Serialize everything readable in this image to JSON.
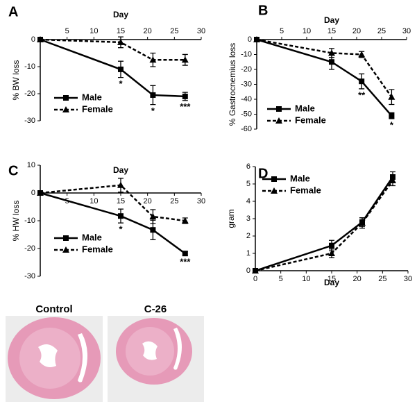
{
  "chart_data": [
    {
      "type": "line",
      "panel": "A",
      "x_label": "Day",
      "y_label": "% BW loss",
      "x": [
        0,
        15,
        21,
        27
      ],
      "xlim": [
        0,
        30
      ],
      "xticks": [
        5,
        10,
        15,
        20,
        25,
        30
      ],
      "ylim": [
        -30,
        0
      ],
      "yticks": [
        0,
        -10,
        -20,
        -30
      ],
      "series": [
        {
          "name": "Male",
          "color": "#000000",
          "marker": "square",
          "dashed": false,
          "values": [
            0,
            -11,
            -20.5,
            -21
          ],
          "errors": [
            0,
            3,
            3.5,
            1.5
          ]
        },
        {
          "name": "Female",
          "color": "#000000",
          "marker": "triangle",
          "dashed": true,
          "values": [
            0,
            -1,
            -7.5,
            -7.5
          ],
          "errors": [
            0,
            2,
            2.5,
            2
          ]
        }
      ],
      "annotations": [
        {
          "x": 15,
          "text": "*"
        },
        {
          "x": 21,
          "text": "*"
        },
        {
          "x": 27,
          "text": "***"
        }
      ]
    },
    {
      "type": "line",
      "panel": "B",
      "x_label": "Day",
      "y_label": "% Gastrocnemius loss",
      "x": [
        0,
        15,
        21,
        27
      ],
      "xlim": [
        0,
        30
      ],
      "xticks": [
        5,
        10,
        15,
        20,
        25,
        30
      ],
      "ylim": [
        -60,
        0
      ],
      "yticks": [
        0,
        -10,
        -20,
        -30,
        -40,
        -50,
        -60
      ],
      "series": [
        {
          "name": "Male",
          "color": "#000000",
          "marker": "square",
          "dashed": false,
          "values": [
            0,
            -15,
            -28,
            -51
          ],
          "errors": [
            0,
            5,
            5,
            2
          ]
        },
        {
          "name": "Female",
          "color": "#000000",
          "marker": "triangle",
          "dashed": true,
          "values": [
            0,
            -9,
            -10,
            -38.5
          ],
          "errors": [
            0,
            3,
            2,
            5
          ]
        }
      ],
      "annotations": [
        {
          "x": 21,
          "text": "**"
        },
        {
          "x": 27,
          "text": "*"
        }
      ]
    },
    {
      "type": "line",
      "panel": "C",
      "x_label": "Day",
      "y_label": "% HW loss",
      "x": [
        0,
        15,
        21,
        27
      ],
      "xlim": [
        0,
        30
      ],
      "xticks": [
        5,
        10,
        15,
        20,
        25,
        30
      ],
      "ylim": [
        -30,
        10
      ],
      "yticks": [
        10,
        0,
        -10,
        -20,
        -30
      ],
      "series": [
        {
          "name": "Male",
          "color": "#000000",
          "marker": "square",
          "dashed": false,
          "values": [
            0,
            -8.3,
            -13.3,
            -21.8
          ],
          "errors": [
            0,
            2.5,
            3.5,
            0.7
          ]
        },
        {
          "name": "Female",
          "color": "#000000",
          "marker": "triangle",
          "dashed": true,
          "values": [
            0,
            2.8,
            -8.5,
            -10
          ],
          "errors": [
            0,
            2.5,
            2.5,
            1
          ]
        }
      ],
      "annotations": [
        {
          "x": 15,
          "text": "*"
        },
        {
          "x": 27,
          "text": "***"
        }
      ]
    },
    {
      "type": "line",
      "panel": "D",
      "x_label": "Day",
      "y_label": "gram",
      "x": [
        0,
        15,
        21,
        27
      ],
      "xlim": [
        0,
        30
      ],
      "xticks": [
        0,
        5,
        10,
        15,
        20,
        25,
        30
      ],
      "ylim": [
        0,
        6
      ],
      "yticks": [
        0,
        1,
        2,
        3,
        4,
        5,
        6
      ],
      "series": [
        {
          "name": "Male",
          "color": "#000000",
          "marker": "square",
          "dashed": false,
          "values": [
            0,
            1.45,
            2.8,
            5.4
          ],
          "errors": [
            0,
            0.3,
            0.25,
            0.3
          ]
        },
        {
          "name": "Female",
          "color": "#000000",
          "marker": "triangle",
          "dashed": true,
          "values": [
            0,
            1.0,
            2.75,
            5.2
          ],
          "errors": [
            0,
            0.25,
            0.3,
            0.3
          ]
        }
      ],
      "annotations": []
    }
  ],
  "images": [
    {
      "label": "Control"
    },
    {
      "label": "C-26"
    }
  ]
}
